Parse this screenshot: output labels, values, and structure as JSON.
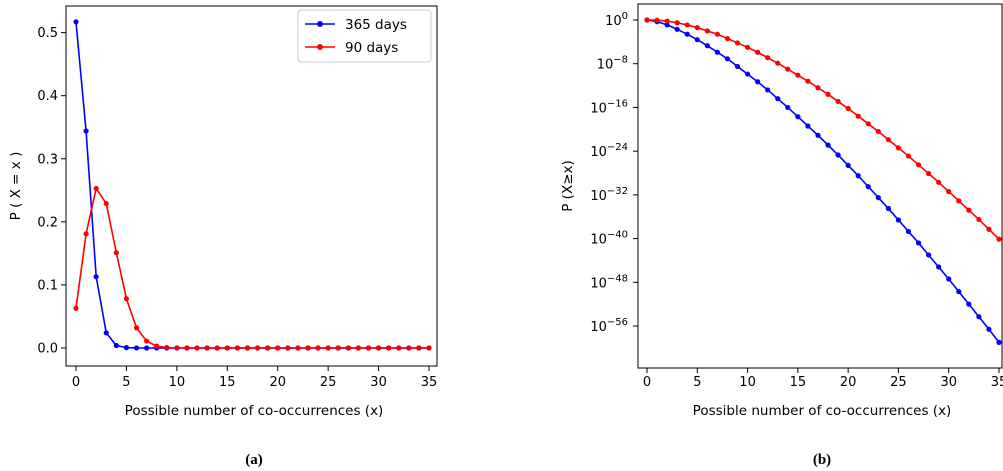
{
  "chart_data": [
    {
      "type": "line",
      "panel": "(a)",
      "xlabel": "Possible number of co-occurrences (x)",
      "ylabel": "P ( X = x )",
      "xlim": [
        0,
        35
      ],
      "ylim": [
        0,
        0.52
      ],
      "xticks": [
        0,
        5,
        10,
        15,
        20,
        25,
        30,
        35
      ],
      "yticks": [
        0.0,
        0.1,
        0.2,
        0.3,
        0.4,
        0.5
      ],
      "ytick_labels": [
        "0.0",
        "0.1",
        "0.2",
        "0.3",
        "0.4",
        "0.5"
      ],
      "legend_position": "top-right",
      "x": [
        0,
        1,
        2,
        3,
        4,
        5,
        6,
        7,
        8,
        9,
        10,
        11,
        12,
        13,
        14,
        15,
        16,
        17,
        18,
        19,
        20,
        21,
        22,
        23,
        24,
        25,
        26,
        27,
        28,
        29,
        30,
        31,
        32,
        33,
        34,
        35
      ],
      "series": [
        {
          "name": "365 days",
          "color": "#0000ff",
          "values": [
            0.517,
            0.344,
            0.113,
            0.024,
            0.004,
            0.0006,
            0.0001,
            0,
            0,
            0,
            0,
            0,
            0,
            0,
            0,
            0,
            0,
            0,
            0,
            0,
            0,
            0,
            0,
            0,
            0,
            0,
            0,
            0,
            0,
            0,
            0,
            0,
            0,
            0,
            0,
            0
          ]
        },
        {
          "name": "90 days",
          "color": "#ff0000",
          "values": [
            0.063,
            0.181,
            0.253,
            0.229,
            0.151,
            0.078,
            0.032,
            0.011,
            0.003,
            0.0008,
            0.0002,
            0,
            0,
            0,
            0,
            0,
            0,
            0,
            0,
            0,
            0,
            0,
            0,
            0,
            0,
            0,
            0,
            0,
            0,
            0,
            0,
            0,
            0,
            0,
            0,
            0
          ]
        }
      ]
    },
    {
      "type": "line",
      "panel": "(b)",
      "xlabel": "Possible number of co-occurrences (x)",
      "ylabel": "P (X≥x)",
      "scale_y": "log",
      "xlim": [
        0,
        35
      ],
      "ylim_log10": [
        -62,
        2
      ],
      "xticks": [
        0,
        5,
        10,
        15,
        20,
        25,
        30,
        35
      ],
      "yticks_log10": [
        0,
        -8,
        -16,
        -24,
        -32,
        -40,
        -48,
        -56
      ],
      "ytick_labels": [
        "10^0",
        "10^-8",
        "10^-16",
        "10^-24",
        "10^-32",
        "10^-40",
        "10^-48",
        "10^-56"
      ],
      "x": [
        0,
        1,
        2,
        3,
        4,
        5,
        6,
        7,
        8,
        9,
        10,
        11,
        12,
        13,
        14,
        15,
        16,
        17,
        18,
        19,
        20,
        21,
        22,
        23,
        24,
        25,
        26,
        27,
        28,
        29,
        30,
        31,
        32,
        33,
        34,
        35
      ],
      "series": [
        {
          "color": "#0000ff",
          "log10_values": [
            0,
            -0.3,
            -0.9,
            -1.7,
            -2.6,
            -3.6,
            -4.7,
            -5.9,
            -7.1,
            -8.5,
            -9.9,
            -11.3,
            -12.8,
            -14.4,
            -16.0,
            -17.7,
            -19.4,
            -21.1,
            -22.9,
            -24.7,
            -26.6,
            -28.5,
            -30.5,
            -32.5,
            -34.5,
            -36.6,
            -38.7,
            -40.8,
            -43.0,
            -45.2,
            -47.4,
            -49.7,
            -52.0,
            -54.3,
            -56.6,
            -59.0
          ]
        },
        {
          "color": "#ff0000",
          "log10_values": [
            0,
            -0.03,
            -0.2,
            -0.5,
            -0.9,
            -1.4,
            -2.0,
            -2.6,
            -3.4,
            -4.2,
            -5.0,
            -5.9,
            -6.9,
            -7.9,
            -9.0,
            -10.1,
            -11.2,
            -12.4,
            -13.6,
            -14.9,
            -16.2,
            -17.6,
            -19.0,
            -20.4,
            -21.9,
            -23.4,
            -24.9,
            -26.5,
            -28.1,
            -29.7,
            -31.4,
            -33.1,
            -34.8,
            -36.5,
            -38.3,
            -40.1
          ]
        }
      ]
    }
  ],
  "captions": {
    "a": "(a)",
    "b": "(b)"
  }
}
